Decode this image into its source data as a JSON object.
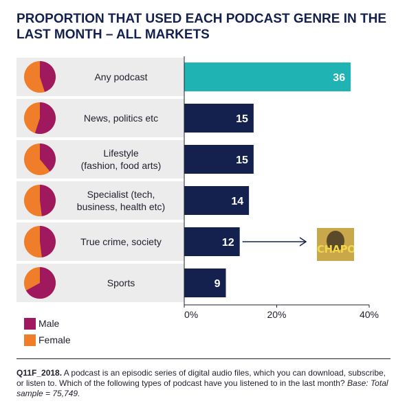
{
  "title": "PROPORTION THAT USED EACH PODCAST GENRE IN THE LAST MONTH – ALL MARKETS",
  "colors": {
    "male": "#a0195e",
    "female": "#f07d2a",
    "highlight_bar": "#1fb3b3",
    "bar": "#14214e",
    "row_bg": "#ececec"
  },
  "legend": [
    {
      "label": "Male"
    },
    {
      "label": "Female"
    }
  ],
  "chart_data": {
    "type": "bar",
    "orientation": "horizontal",
    "title": "PROPORTION THAT USED EACH PODCAST GENRE IN THE LAST MONTH – ALL MARKETS",
    "categories": [
      "Any podcast",
      "News, politics etc",
      "Lifestyle\n(fashion, food arts)",
      "Specialist (tech,\nbusiness, health etc)",
      "True crime, society",
      "Sports"
    ],
    "values": [
      36,
      15,
      15,
      14,
      12,
      9
    ],
    "value_labels": [
      "36",
      "15",
      "15",
      "14",
      "12",
      "9"
    ],
    "xlim": [
      0,
      40
    ],
    "x_ticks": [
      0,
      20,
      40
    ],
    "x_tick_labels": [
      "0%",
      "20%",
      "40%"
    ],
    "grid": false,
    "legend_position": "bottom-left",
    "gender_split_male_share": [
      0.45,
      0.55,
      0.39,
      0.48,
      0.48,
      0.67
    ],
    "highlighted_category": "Any podcast",
    "annotation_image_text": "CHAPO"
  },
  "footnote": {
    "code": "Q11F_2018.",
    "text": " A podcast is an episodic series of digital audio files, which you can download, subscribe, or listen to. Which of the following types of podcast have you listened to in the last month? ",
    "base": "Base: Total sample = 75,749."
  }
}
